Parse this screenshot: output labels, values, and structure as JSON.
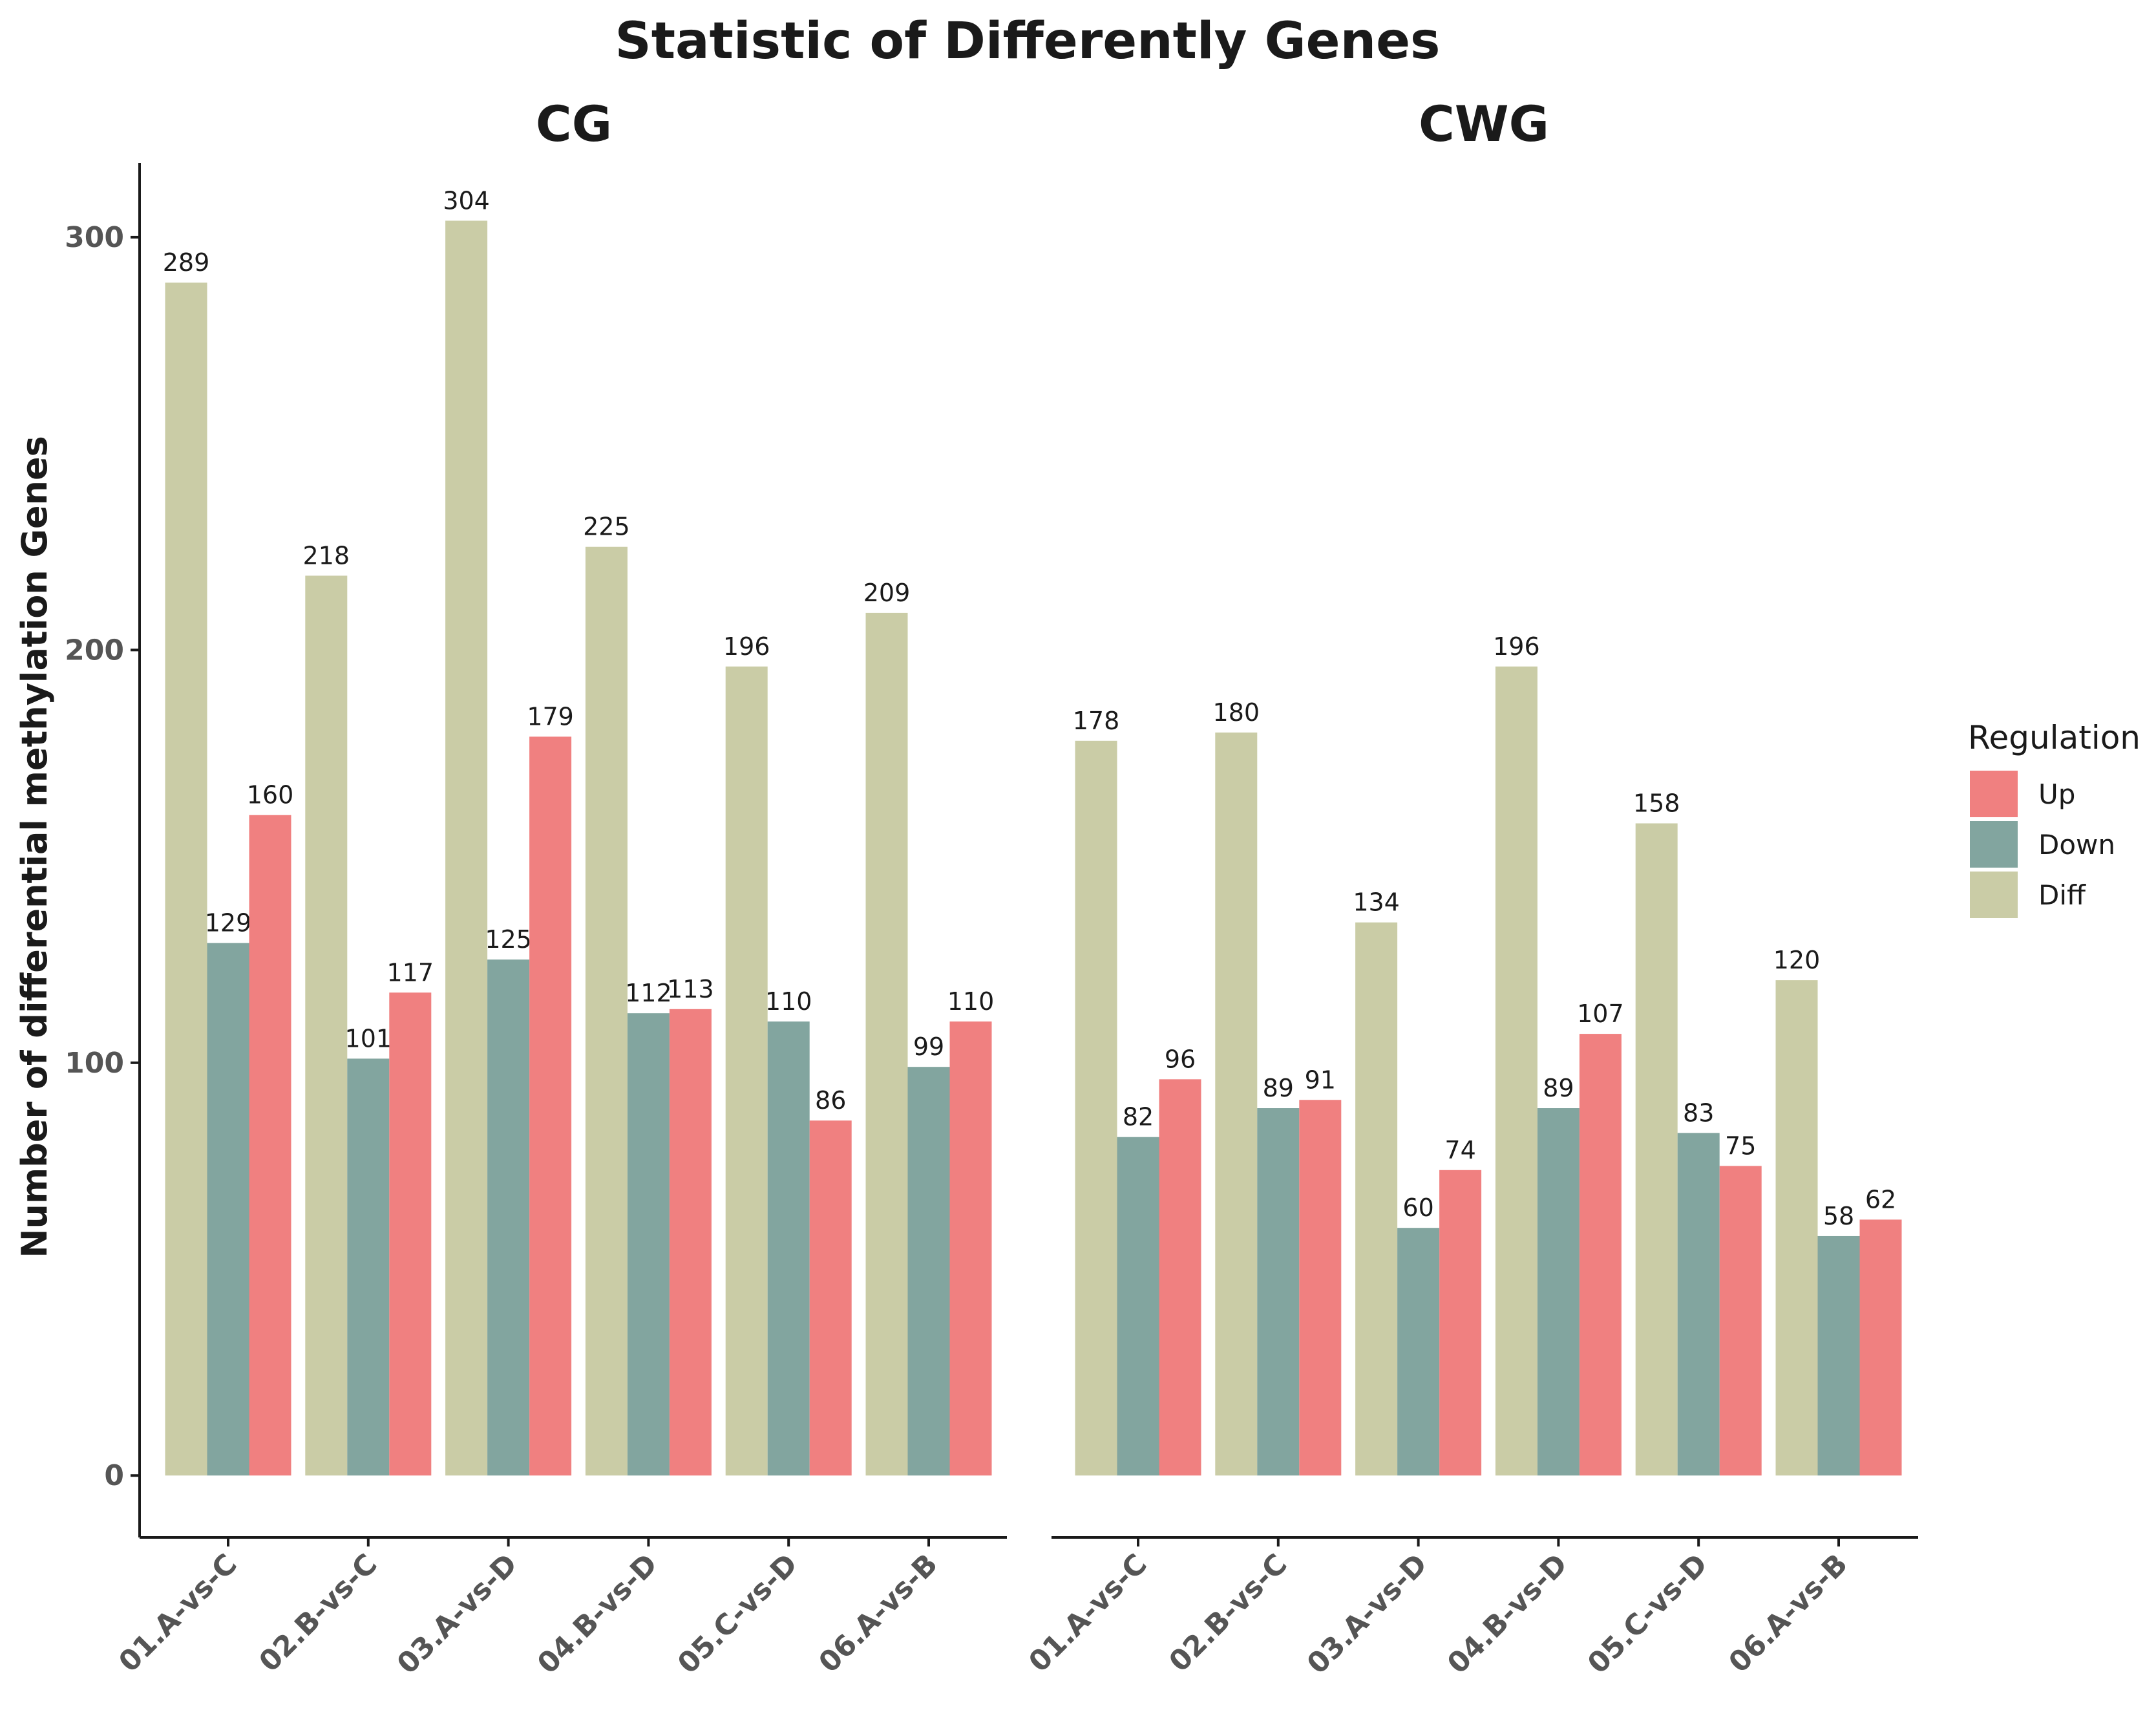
{
  "chart_data": {
    "type": "bar",
    "title": "Statistic of Differently Genes",
    "ylabel": "Number of differential methylation Genes",
    "xlabel": "",
    "ylim": [
      -15,
      318
    ],
    "yticks": [
      0,
      100,
      200,
      300
    ],
    "legend_position": "right",
    "legend_title": "Regulation",
    "legend": [
      {
        "key": "Up",
        "label": "Up",
        "color": "#F08080"
      },
      {
        "key": "Down",
        "label": "Down",
        "color": "#82A59F"
      },
      {
        "key": "Diff",
        "label": "Diff",
        "color": "#CACCA6"
      }
    ],
    "bar_order": [
      "Diff",
      "Down",
      "Up"
    ],
    "categories": [
      "01.A-vs-C",
      "02.B-vs-C",
      "03.A-vs-D",
      "04.B-vs-D",
      "05.C-vs-D",
      "06.A-vs-B"
    ],
    "panels": [
      {
        "name": "CG",
        "series": [
          {
            "name": "Diff",
            "values": [
              289,
              218,
              304,
              225,
              196,
              209
            ]
          },
          {
            "name": "Down",
            "values": [
              129,
              101,
              125,
              112,
              110,
              99
            ]
          },
          {
            "name": "Up",
            "values": [
              160,
              117,
              179,
              113,
              86,
              110
            ]
          }
        ]
      },
      {
        "name": "CWG",
        "series": [
          {
            "name": "Diff",
            "values": [
              178,
              180,
              134,
              196,
              158,
              120
            ]
          },
          {
            "name": "Down",
            "values": [
              82,
              89,
              60,
              89,
              83,
              58
            ]
          },
          {
            "name": "Up",
            "values": [
              96,
              91,
              74,
              107,
              75,
              62
            ]
          }
        ]
      }
    ]
  }
}
